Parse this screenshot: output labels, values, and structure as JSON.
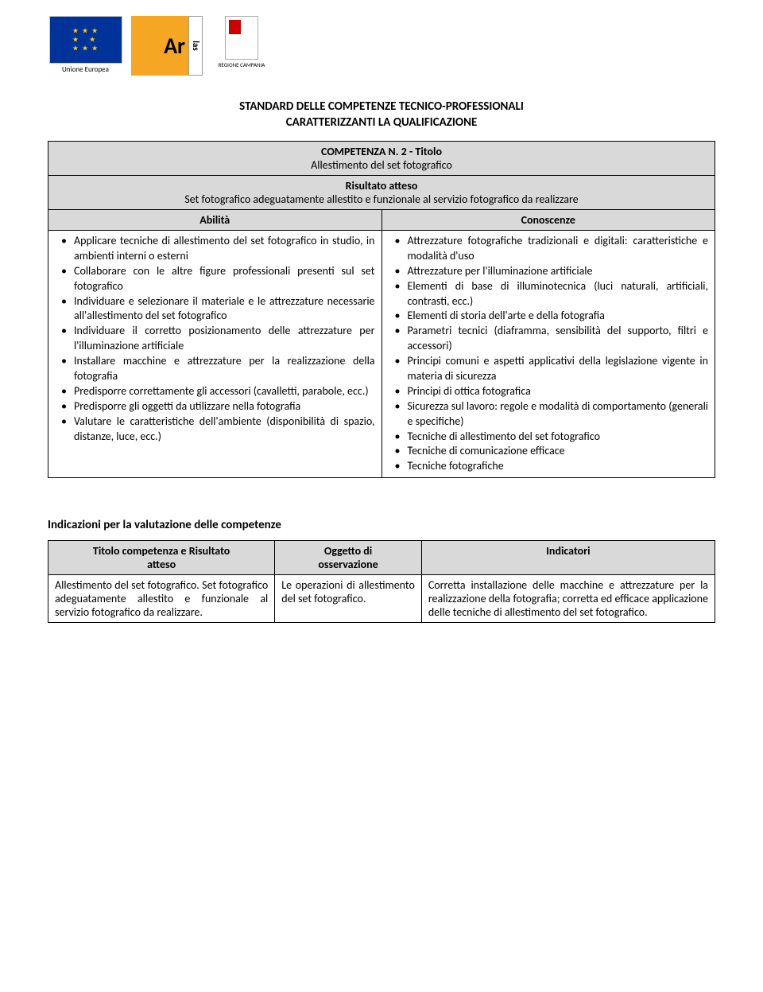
{
  "logos": {
    "eu_label": "Unione Europea",
    "ar_label": "Ar",
    "ar_side": "las",
    "campania_label": "REGIONE CAMPANIA"
  },
  "heading": {
    "line1": "STANDARD DELLE COMPETENZE TECNICO-PROFESSIONALI",
    "line2": "CARATTERIZZANTI LA QUALIFICAZIONE"
  },
  "competenza": {
    "header_line1": "COMPETENZA N. 2 - Titolo",
    "header_line2": "Allestimento del set fotografico",
    "risultato_label": "Risultato atteso",
    "risultato_text": "Set fotografico adeguatamente allestito e funzionale al servizio fotografico da realizzare",
    "abilita_label": "Abilità",
    "conoscenze_label": "Conoscenze",
    "abilita": [
      "Applicare tecniche di allestimento del set fotografico in studio, in ambienti interni o esterni",
      "Collaborare con le altre figure professionali presenti sul set fotografico",
      "Individuare e selezionare il materiale e le attrezzature necessarie all'allestimento del set fotografico",
      "Individuare il corretto posizionamento delle attrezzature per l'illuminazione artificiale",
      "Installare macchine e attrezzature per la realizzazione della fotografia",
      "Predisporre correttamente gli accessori (cavalletti, parabole, ecc.)",
      "Predisporre gli oggetti da utilizzare nella fotografia",
      "Valutare le caratteristiche dell'ambiente (disponibilità di spazio, distanze, luce, ecc.)"
    ],
    "conoscenze": [
      "Attrezzature fotografiche tradizionali e digitali: caratteristiche e modalità d'uso",
      "Attrezzature per l'illuminazione artificiale",
      "Elementi di base di illuminotecnica (luci naturali, artificiali, contrasti, ecc.)",
      "Elementi di storia dell'arte e della fotografia",
      "Parametri tecnici (diaframma, sensibilità del supporto, filtri e accessori)",
      "Principi comuni e aspetti applicativi della legislazione vigente in materia di sicurezza",
      "Principi di ottica fotografica",
      "Sicurezza sul lavoro: regole e modalità di comportamento (generali e specifiche)",
      "Tecniche di allestimento del set fotografico",
      "Tecniche di comunicazione efficace",
      "Tecniche fotografiche"
    ]
  },
  "indicazioni": {
    "section_title": "Indicazioni per la valutazione delle competenze",
    "col1_line1": "Titolo competenza e Risultato",
    "col1_line2": "atteso",
    "col2_line1": "Oggetto di",
    "col2_line2": "osservazione",
    "col3": "Indicatori",
    "row": {
      "c1": "Allestimento del set fotografico. Set fotografico adeguatamente allestito e funzionale al servizio fotografico da realizzare.",
      "c2": "Le operazioni di allestimento del set fotografico.",
      "c3": "Corretta installazione delle macchine e attrezzature per la realizzazione della fotografia; corretta ed efficace applicazione delle tecniche di allestimento del set fotografico."
    }
  },
  "colors": {
    "header_bg": "#d9d9d9",
    "border": "#000000",
    "eu_blue": "#003399",
    "eu_gold": "#ffcc00",
    "ar_orange": "#f5a623",
    "campania_red": "#cc0000"
  }
}
